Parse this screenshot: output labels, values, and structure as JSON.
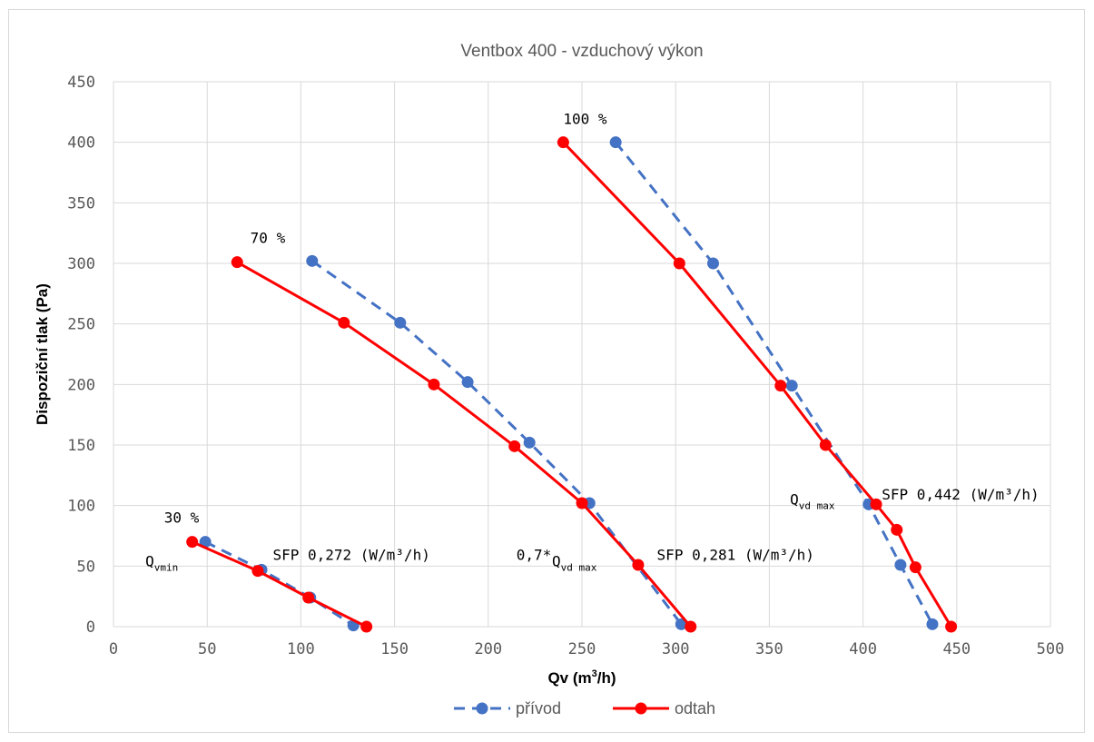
{
  "chart_data": {
    "type": "line",
    "title": "Ventbox 400 - vzduchový výkon",
    "xlabel": "Qv (m3/h)",
    "ylabel": "Dispoziční tlak (Pa)",
    "xlim": [
      0,
      500
    ],
    "ylim": [
      0,
      450
    ],
    "x_ticks": [
      "0",
      "50",
      "100",
      "150",
      "200",
      "250",
      "300",
      "350",
      "400",
      "450",
      "500"
    ],
    "y_ticks": [
      "0",
      "50",
      "100",
      "150",
      "200",
      "250",
      "300",
      "350",
      "400",
      "450"
    ],
    "grid": true,
    "legend_position": "bottom",
    "series": [
      {
        "name": "přívod",
        "color": "#4472c4",
        "style": "dashed",
        "segments": [
          {
            "x": [
              49,
              79,
              105,
              128
            ],
            "y": [
              70,
              47,
              24,
              1
            ]
          },
          {
            "x": [
              106,
              153,
              189,
              222,
              254,
              303
            ],
            "y": [
              302,
              251,
              202,
              152,
              102,
              2
            ]
          },
          {
            "x": [
              268,
              320,
              362,
              403,
              420,
              437
            ],
            "y": [
              400,
              300,
              199,
              101,
              51,
              2
            ]
          }
        ]
      },
      {
        "name": "odtah",
        "color": "#ff0000",
        "style": "solid",
        "segments": [
          {
            "x": [
              42,
              77,
              104,
              135
            ],
            "y": [
              70,
              46,
              24,
              0
            ]
          },
          {
            "x": [
              66,
              123,
              171,
              214,
              250,
              280,
              308
            ],
            "y": [
              301,
              251,
              200,
              149,
              102,
              51,
              0
            ]
          },
          {
            "x": [
              240,
              302,
              356,
              380,
              407,
              418,
              428,
              447
            ],
            "y": [
              400,
              300,
              199,
              150,
              101,
              80,
              49,
              0
            ]
          }
        ]
      }
    ],
    "annotations": [
      {
        "text": "30 %",
        "x": 27,
        "y": 86
      },
      {
        "text": "70 %",
        "x": 73,
        "y": 317
      },
      {
        "text": "100 %",
        "x": 240,
        "y": 415
      },
      {
        "text": "SFP 0,272 (W/m³/h)",
        "x": 85,
        "y": 55
      },
      {
        "text": "SFP 0,281 (W/m³/h)",
        "x": 290,
        "y": 55
      },
      {
        "text": "SFP 0,442 (W/m³/h)",
        "x": 410,
        "y": 105
      },
      {
        "text": "0,7* ",
        "x": 215,
        "y": 55
      }
    ],
    "sub_labels": [
      {
        "main": "Q",
        "sub": "vmin",
        "x": 17,
        "y": 50
      },
      {
        "main": "Q",
        "sub": "vd max",
        "x": 234,
        "y": 50
      },
      {
        "main": "Q",
        "sub": "vd max",
        "x": 361,
        "y": 101
      }
    ]
  }
}
